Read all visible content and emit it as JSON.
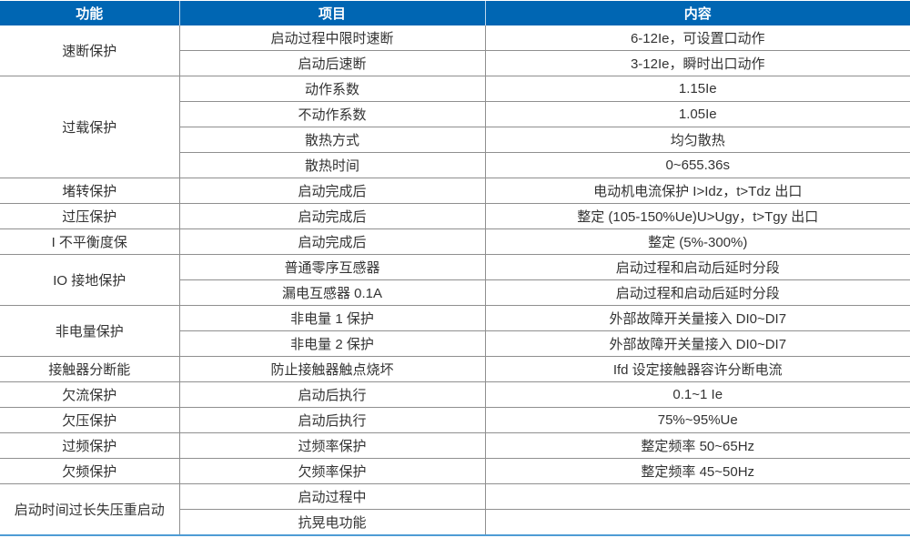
{
  "table": {
    "headers": [
      {
        "key": "function",
        "label": "功能"
      },
      {
        "key": "item",
        "label": "项目"
      },
      {
        "key": "content",
        "label": "内容"
      }
    ],
    "groups": [
      {
        "function": "速断保护",
        "rows": [
          {
            "item": "启动过程中限时速断",
            "content": "6-12Ie，可设置口动作"
          },
          {
            "item": "启动后速断",
            "content": "3-12Ie，瞬时出口动作"
          }
        ]
      },
      {
        "function": "过载保护",
        "rows": [
          {
            "item": "动作系数",
            "content": "1.15Ie"
          },
          {
            "item": "不动作系数",
            "content": "1.05Ie"
          },
          {
            "item": "散热方式",
            "content": "均匀散热"
          },
          {
            "item": "散热时间",
            "content": "0~655.36s"
          }
        ]
      },
      {
        "function": "堵转保护",
        "rows": [
          {
            "item": "启动完成后",
            "content": "电动机电流保护 I>Idz，t>Tdz 出口"
          }
        ]
      },
      {
        "function": "过压保护",
        "rows": [
          {
            "item": "启动完成后",
            "content": "整定 (105-150%Ue)U>Ugy，t>Tgy 出口"
          }
        ]
      },
      {
        "function": "I 不平衡度保",
        "rows": [
          {
            "item": "启动完成后",
            "content": "整定 (5%-300%)"
          }
        ]
      },
      {
        "function": "IO 接地保护",
        "rows": [
          {
            "item": "普通零序互感器",
            "content": "启动过程和启动后延时分段"
          },
          {
            "item": "漏电互感器 0.1A",
            "content": "启动过程和启动后延时分段"
          }
        ]
      },
      {
        "function": "非电量保护",
        "rows": [
          {
            "item": "非电量 1 保护",
            "content": "外部故障开关量接入 DI0~DI7"
          },
          {
            "item": "非电量 2 保护",
            "content": "外部故障开关量接入 DI0~DI7"
          }
        ]
      },
      {
        "function": "接触器分断能",
        "rows": [
          {
            "item": "防止接触器触点烧坏",
            "content": "Ifd 设定接触器容许分断电流"
          }
        ]
      },
      {
        "function": "欠流保护",
        "rows": [
          {
            "item": "启动后执行",
            "content": "0.1~1 Ie"
          }
        ]
      },
      {
        "function": "欠压保护",
        "rows": [
          {
            "item": "启动后执行",
            "content": "75%~95%Ue"
          }
        ]
      },
      {
        "function": "过频保护",
        "rows": [
          {
            "item": "过频率保护",
            "content": "整定频率 50~65Hz"
          }
        ]
      },
      {
        "function": "欠频保护",
        "rows": [
          {
            "item": "欠频率保护",
            "content": "整定频率 45~50Hz"
          }
        ]
      },
      {
        "function": "启动时间过长失压重启动",
        "rows": [
          {
            "item": "启动过程中",
            "content": ""
          },
          {
            "item": "抗晃电功能",
            "content": ""
          }
        ]
      }
    ],
    "colors": {
      "header_bg": "#0066b3",
      "header_text": "#ffffff",
      "grid_line": "#8f8f8f",
      "header_divider": "#bdd7ec",
      "bottom_line": "#4e9cd5",
      "body_text": "#333333"
    }
  }
}
